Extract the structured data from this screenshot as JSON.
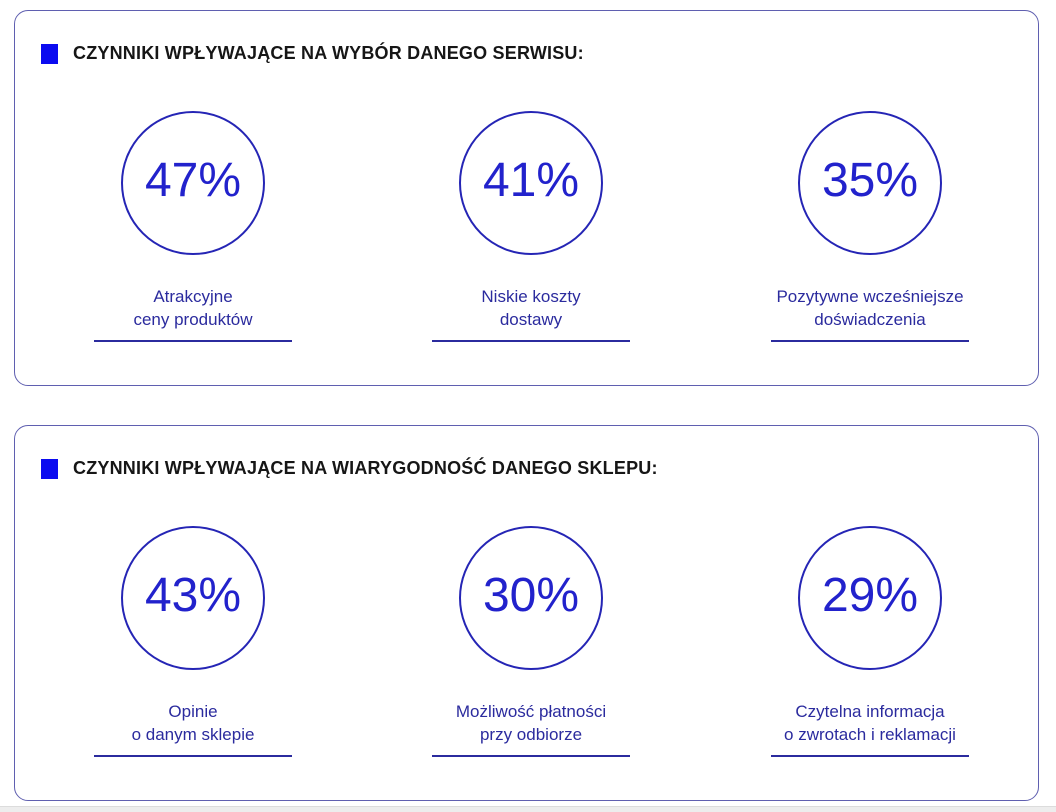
{
  "colors": {
    "bullet_blue": "#0b0bf0",
    "circle_stroke_blue": "#2525b5",
    "percent_blue": "#2222cc",
    "label_blue": "#2b2b9e",
    "panel_border_blue": "#5f5fb0",
    "header_text": "#161616"
  },
  "sections": [
    {
      "title": "CZYNNIKI WPŁYWAJĄCE NA WYBÓR DANEGO SERWISU:",
      "stats": [
        {
          "value": "47%",
          "label_line1": "Atrakcyjne",
          "label_line2": "ceny produktów"
        },
        {
          "value": "41%",
          "label_line1": "Niskie koszty",
          "label_line2": "dostawy"
        },
        {
          "value": "35%",
          "label_line1": "Pozytywne wcześniejsze",
          "label_line2": "doświadczenia"
        }
      ]
    },
    {
      "title": "CZYNNIKI WPŁYWAJĄCE NA WIARYGODNOŚĆ DANEGO SKLEPU:",
      "stats": [
        {
          "value": "43%",
          "label_line1": "Opinie",
          "label_line2": "o danym sklepie"
        },
        {
          "value": "30%",
          "label_line1": "Możliwość płatności",
          "label_line2": "przy odbiorze"
        },
        {
          "value": "29%",
          "label_line1": "Czytelna informacja",
          "label_line2": "o zwrotach i reklamacji"
        }
      ]
    }
  ],
  "chart_data": [
    {
      "type": "table",
      "title": "CZYNNIKI WPŁYWAJĄCE NA WYBÓR DANEGO SERWISU:",
      "categories": [
        "Atrakcyjne ceny produktów",
        "Niskie koszty dostawy",
        "Pozytywne wcześniejsze doświadczenia"
      ],
      "values": [
        47,
        41,
        35
      ],
      "unit": "%",
      "layout_hint": "three outlined stat circles in a row, percentage inside, underlined caption below"
    },
    {
      "type": "table",
      "title": "CZYNNIKI WPŁYWAJĄCE NA WIARYGODNOŚĆ DANEGO SKLEPU:",
      "categories": [
        "Opinie o danym sklepie",
        "Możliwość płatności przy odbiorze",
        "Czytelna informacja o zwrotach i reklamacji"
      ],
      "values": [
        43,
        30,
        29
      ],
      "unit": "%",
      "layout_hint": "three outlined stat circles in a row, percentage inside, underlined caption below"
    }
  ]
}
